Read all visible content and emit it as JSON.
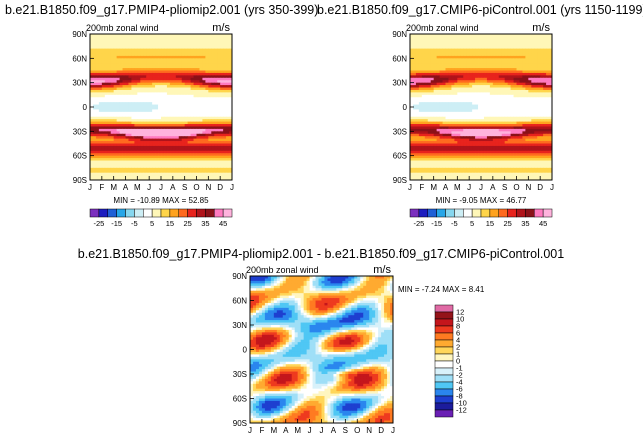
{
  "colors": {
    "panel_scale": [
      "#7b2fbe",
      "#1d1dbf",
      "#1f5fd6",
      "#26a6e8",
      "#86d7ef",
      "#cdeef5",
      "#ffffff",
      "#fff7b8",
      "#ffd54a",
      "#ffa31f",
      "#ff6a1f",
      "#e8231d",
      "#b0131a",
      "#8a1118",
      "#ff7bc0",
      "#ffb3dd"
    ],
    "diff_scale": [
      "#6a1fb4",
      "#1c1c9c",
      "#1e3fd0",
      "#2a86ee",
      "#4fc7f4",
      "#9fdff7",
      "#d8f1fa",
      "#ffffff",
      "#fff6c0",
      "#ffd65a",
      "#ffaa30",
      "#ff7a21",
      "#ee3a1f",
      "#c4161c",
      "#941319",
      "#e06aa5"
    ]
  },
  "chart_data": [
    {
      "type": "heatmap",
      "panel_title": "b.e21.B1850.f09_g17.PMIP4-pliomip2.001 (yrs 350-399)",
      "subtitle_left": "200mb zonal wind",
      "subtitle_right": "m/s",
      "x_ticks": [
        "J",
        "F",
        "M",
        "A",
        "M",
        "J",
        "J",
        "A",
        "S",
        "O",
        "N",
        "D",
        "J"
      ],
      "y_ticks": [
        "90N",
        "60N",
        "30N",
        "0",
        "30S",
        "60S",
        "90S"
      ],
      "stats_text": "MIN = -10.89 MAX = 52.85",
      "min": -10.89,
      "max": 52.85,
      "colorbar_labels": [
        "-25",
        "-15",
        "-5",
        "5",
        "15",
        "25",
        "35",
        "45"
      ],
      "colorbar_levels": [
        -30,
        -25,
        -20,
        -15,
        -10,
        -5,
        0,
        5,
        10,
        15,
        20,
        25,
        30,
        35,
        40,
        45,
        50
      ],
      "jet_north_lat": 32,
      "jet_north_peak": 42,
      "jet_south_lat": -30,
      "jet_south_peak": 52.85
    },
    {
      "type": "heatmap",
      "panel_title": "b.e21.B1850.f09_g17.CMIP6-piControl.001 (yrs 1150-1199)",
      "subtitle_left": "200mb zonal wind",
      "subtitle_right": "m/s",
      "x_ticks": [
        "J",
        "F",
        "M",
        "A",
        "M",
        "J",
        "J",
        "A",
        "S",
        "O",
        "N",
        "D",
        "J"
      ],
      "y_ticks": [
        "90N",
        "60N",
        "30N",
        "0",
        "30S",
        "60S",
        "90S"
      ],
      "stats_text": "MIN = -9.05 MAX = 46.77",
      "min": -9.05,
      "max": 46.77,
      "colorbar_labels": [
        "-25",
        "-15",
        "-5",
        "5",
        "15",
        "25",
        "35",
        "45"
      ],
      "colorbar_levels": [
        -30,
        -25,
        -20,
        -15,
        -10,
        -5,
        0,
        5,
        10,
        15,
        20,
        25,
        30,
        35,
        40,
        45,
        50
      ],
      "jet_north_lat": 32,
      "jet_north_peak": 40,
      "jet_south_lat": -30,
      "jet_south_peak": 46.77
    },
    {
      "type": "heatmap",
      "panel_title": "b.e21.B1850.f09_g17.PMIP4-pliomip2.001 - b.e21.B1850.f09_g17.CMIP6-piControl.001",
      "subtitle_left": "200mb zonal wind",
      "subtitle_right": "m/s",
      "x_ticks": [
        "J",
        "F",
        "M",
        "A",
        "M",
        "J",
        "J",
        "A",
        "S",
        "O",
        "N",
        "D",
        "J"
      ],
      "y_ticks": [
        "90N",
        "60N",
        "30N",
        "0",
        "30S",
        "60S",
        "90S"
      ],
      "stats_text": "MIN = -7.24 MAX = 8.41",
      "min": -7.24,
      "max": 8.41,
      "colorbar_labels": [
        "12",
        "10",
        "8",
        "6",
        "4",
        "2",
        "1",
        "0",
        "-1",
        "-2",
        "-4",
        "-6",
        "-8",
        "-10",
        "-12"
      ],
      "colorbar_levels": [
        -12,
        -10,
        -8,
        -6,
        -4,
        -2,
        -1,
        0,
        1,
        2,
        4,
        6,
        8,
        10,
        12
      ]
    }
  ]
}
